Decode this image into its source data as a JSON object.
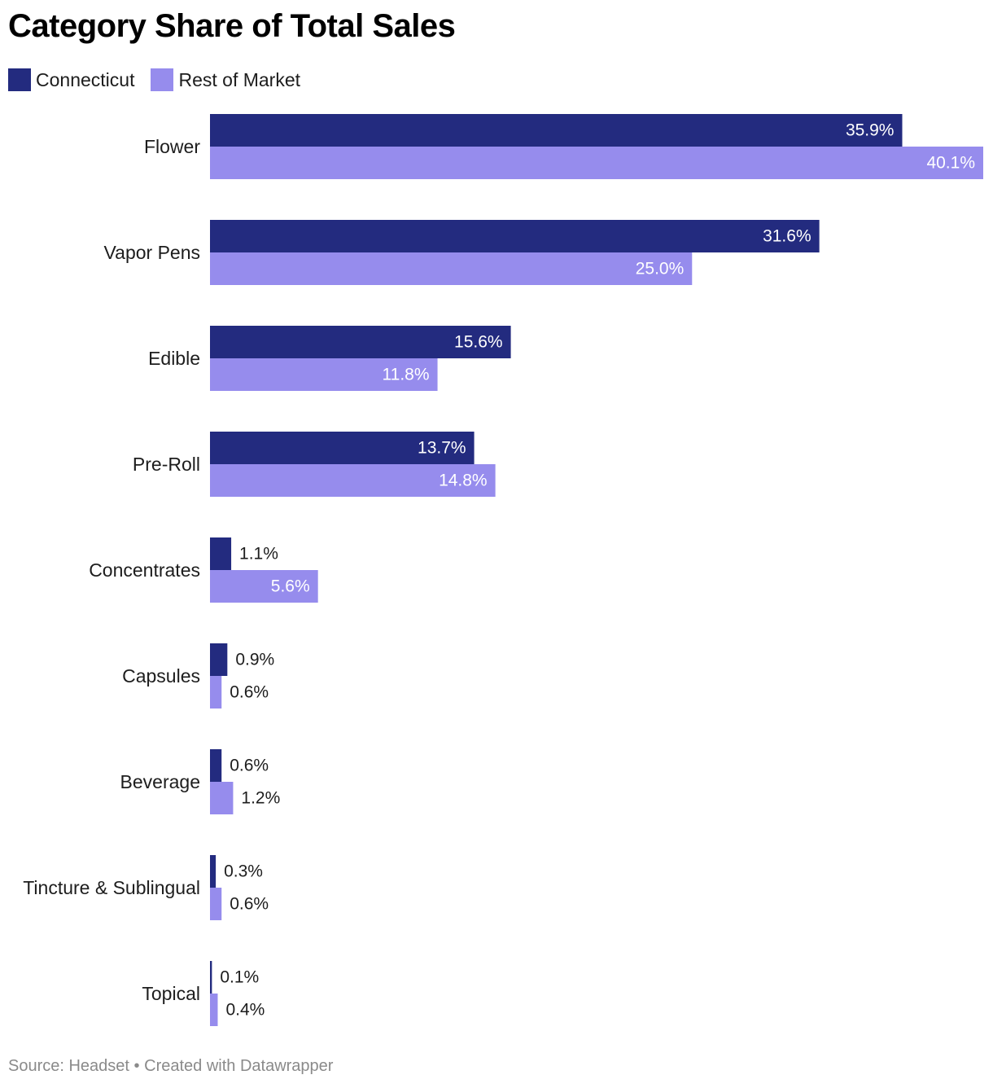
{
  "title": "Category Share of Total Sales",
  "footer": {
    "source": "Source: Headset",
    "separator": "•",
    "credit": "Created with Datawrapper"
  },
  "chart_data": {
    "type": "bar",
    "orientation": "horizontal",
    "title": "Category Share of Total Sales",
    "categories": [
      "Flower",
      "Vapor Pens",
      "Edible",
      "Pre-Roll",
      "Concentrates",
      "Capsules",
      "Beverage",
      "Tincture & Sublingual",
      "Topical"
    ],
    "series": [
      {
        "name": "Connecticut",
        "color": "#232b7f",
        "values": [
          35.9,
          31.6,
          15.6,
          13.7,
          1.1,
          0.9,
          0.6,
          0.3,
          0.1
        ],
        "labels": [
          "35.9%",
          "31.6%",
          "15.6%",
          "13.7%",
          "1.1%",
          "0.9%",
          "0.6%",
          "0.3%",
          "0.1%"
        ]
      },
      {
        "name": "Rest of Market",
        "color": "#968ced",
        "values": [
          40.1,
          25.0,
          11.8,
          14.8,
          5.6,
          0.6,
          1.2,
          0.6,
          0.4
        ],
        "labels": [
          "40.1%",
          "25.0%",
          "11.8%",
          "14.8%",
          "5.6%",
          "0.6%",
          "1.2%",
          "0.6%",
          "0.4%"
        ]
      }
    ],
    "xlim": [
      0,
      40.1
    ],
    "grid": false,
    "legend": "top-left",
    "value_unit": "%"
  }
}
